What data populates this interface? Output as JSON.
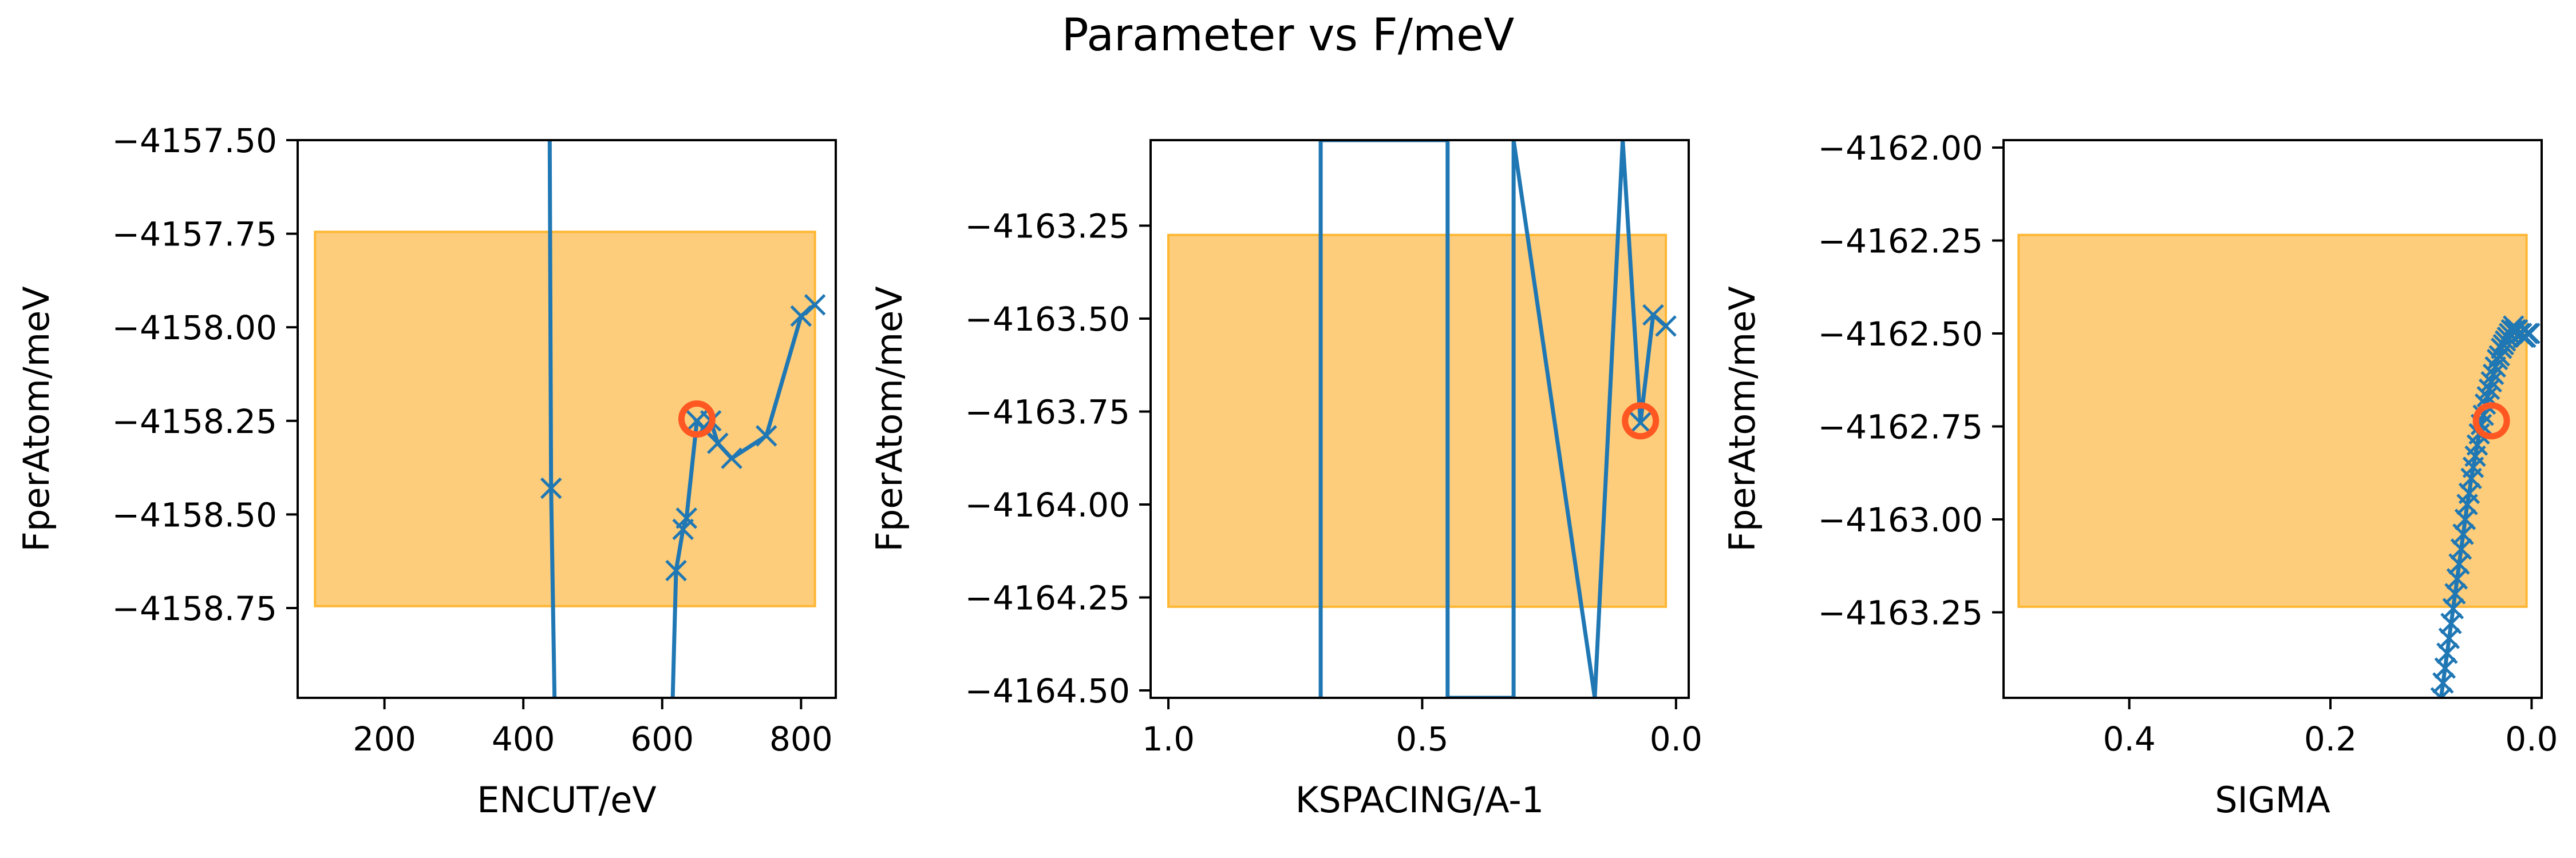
{
  "figure": {
    "title": "Parameter vs F/meV"
  },
  "colors": {
    "line": "#1f77b4",
    "band_fill": "#fdcd7b",
    "band_edge": "#ffb733",
    "highlight": "#ff5722"
  },
  "chart_data": [
    {
      "type": "line",
      "xlabel": "ENCUT/eV",
      "ylabel": "FperAtom/meV",
      "xlim": [
        75,
        850
      ],
      "ylim": [
        -4158.99,
        -4157.5
      ],
      "x_inverted": false,
      "xticks": [
        200,
        400,
        600,
        800
      ],
      "xtick_labels": [
        "200",
        "400",
        "600",
        "800"
      ],
      "yticks": [
        -4158.75,
        -4158.5,
        -4158.25,
        -4158.0,
        -4157.75,
        -4157.5
      ],
      "ytick_labels": [
        "−4158.75",
        "−4158.50",
        "−4158.25",
        "−4158.00",
        "−4157.75",
        "−4157.50"
      ],
      "band": {
        "x": [
          100,
          820
        ],
        "y": [
          -4158.745,
          -4157.745
        ]
      },
      "highlight": {
        "x": 650,
        "y": -4158.245
      },
      "series": [
        {
          "x": [
            438,
            440,
            445,
            615,
            620,
            630,
            635,
            650,
            660,
            670,
            680,
            700,
            750,
            800,
            820
          ],
          "y": [
            -4157.5,
            -4158.43,
            -4159.0,
            -4159.0,
            -4158.65,
            -4158.54,
            -4158.51,
            -4158.25,
            -4158.27,
            -4158.25,
            -4158.31,
            -4158.35,
            -4158.29,
            -4157.97,
            -4157.94
          ],
          "markers": [
            false,
            true,
            false,
            false,
            true,
            true,
            true,
            true,
            true,
            true,
            true,
            true,
            true,
            true,
            true
          ]
        }
      ]
    },
    {
      "type": "line",
      "xlabel": "KSPACING/A-1",
      "ylabel": "FperAtom/meV",
      "xlim": [
        1.035,
        -0.025
      ],
      "ylim": [
        -4164.52,
        -4163.02
      ],
      "x_inverted": true,
      "xticks": [
        1.0,
        0.5,
        0.0
      ],
      "xtick_labels": [
        "1.0",
        "0.5",
        "0.0"
      ],
      "yticks": [
        -4164.5,
        -4164.25,
        -4164.0,
        -4163.75,
        -4163.5,
        -4163.25
      ],
      "ytick_labels": [
        "−4164.50",
        "−4164.25",
        "−4164.00",
        "−4163.75",
        "−4163.50",
        "−4163.25"
      ],
      "band": {
        "x": [
          1.0,
          0.02
        ],
        "y": [
          -4164.275,
          -4163.275
        ]
      },
      "highlight": {
        "x": 0.07,
        "y": -4163.775
      },
      "series": [
        {
          "x": [
            0.7,
            0.7,
            0.45,
            0.45,
            0.32,
            0.32,
            0.16,
            0.105,
            0.07,
            0.045,
            0.02
          ],
          "y": [
            -4164.52,
            -4163.02,
            -4163.02,
            -4164.52,
            -4164.52,
            -4163.02,
            -4164.52,
            -4163.02,
            -4163.78,
            -4163.49,
            -4163.52
          ],
          "markers": [
            false,
            false,
            false,
            false,
            false,
            false,
            false,
            false,
            true,
            true,
            true
          ]
        }
      ]
    },
    {
      "type": "line",
      "xlabel": "SIGMA",
      "ylabel": "FperAtom/meV",
      "xlim": [
        0.525,
        -0.01
      ],
      "ylim": [
        -4163.48,
        -4161.98
      ],
      "x_inverted": true,
      "xticks": [
        0.4,
        0.2,
        0.0
      ],
      "xtick_labels": [
        "0.4",
        "0.2",
        "0.0"
      ],
      "yticks": [
        -4163.25,
        -4163.0,
        -4162.75,
        -4162.5,
        -4162.25,
        -4162.0
      ],
      "ytick_labels": [
        "−4163.25",
        "−4163.00",
        "−4162.75",
        "−4162.50",
        "−4162.25",
        "−4162.00"
      ],
      "band": {
        "x": [
          0.51,
          0.005
        ],
        "y": [
          -4163.235,
          -4162.235
        ]
      },
      "highlight": {
        "x": 0.04,
        "y": -4162.735
      },
      "series": [
        {
          "x": [
            0.09,
            0.088,
            0.086,
            0.084,
            0.082,
            0.08,
            0.078,
            0.076,
            0.074,
            0.072,
            0.07,
            0.068,
            0.066,
            0.064,
            0.062,
            0.06,
            0.058,
            0.056,
            0.054,
            0.052,
            0.05,
            0.048,
            0.046,
            0.044,
            0.042,
            0.04,
            0.038,
            0.036,
            0.034,
            0.032,
            0.03,
            0.028,
            0.026,
            0.024,
            0.022,
            0.02,
            0.018,
            0.016,
            0.014,
            0.012,
            0.01,
            0.008,
            0.006,
            0.004,
            0.002
          ],
          "y": [
            -4163.48,
            -4163.44,
            -4163.4,
            -4163.36,
            -4163.32,
            -4163.28,
            -4163.24,
            -4163.2,
            -4163.16,
            -4163.12,
            -4163.08,
            -4163.04,
            -4163.0,
            -4162.96,
            -4162.93,
            -4162.89,
            -4162.86,
            -4162.83,
            -4162.8,
            -4162.77,
            -4162.745,
            -4162.72,
            -4162.69,
            -4162.67,
            -4162.65,
            -4162.63,
            -4162.61,
            -4162.59,
            -4162.57,
            -4162.56,
            -4162.54,
            -4162.53,
            -4162.52,
            -4162.51,
            -4162.5,
            -4162.49,
            -4162.48,
            -4162.49,
            -4162.49,
            -4162.5,
            -4162.5,
            -4162.51,
            -4162.51,
            -4162.5,
            -4162.5
          ],
          "markers": true
        }
      ]
    }
  ]
}
